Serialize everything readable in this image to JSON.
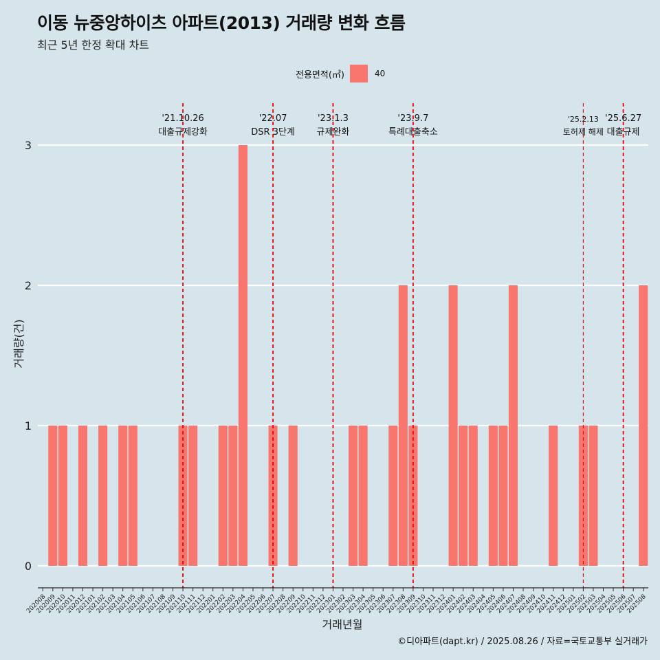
{
  "title": "이동 뉴중앙하이츠 아파트(2013) 거래량 변화 흐름",
  "subtitle": "최근 5년 한정 확대 차트",
  "caption": "©디아파트(dapt.kr) / 2025.08.26 / 자료=국토교통부 실거래가",
  "legend": {
    "title": "전용면적(㎡)",
    "entries": [
      "40"
    ]
  },
  "colors": {
    "background": "#d6e4eb",
    "bar": "#f8766d",
    "vline": "#ee0000",
    "grid": "#ffffff"
  },
  "chart_data": {
    "type": "bar",
    "xlabel": "거래년월",
    "ylabel": "거래량(건)",
    "ylim": [
      0,
      3
    ],
    "yticks": [
      0,
      1,
      2,
      3
    ],
    "grid": true,
    "legend_position": "top",
    "categories": [
      "202008",
      "202009",
      "202010",
      "202011",
      "202012",
      "202101",
      "202102",
      "202103",
      "202104",
      "202105",
      "202106",
      "202107",
      "202108",
      "202109",
      "202110",
      "202111",
      "202112",
      "202201",
      "202202",
      "202203",
      "202204",
      "202205",
      "202206",
      "202207",
      "202208",
      "202209",
      "202210",
      "202211",
      "202212",
      "202301",
      "202302",
      "202303",
      "202304",
      "202305",
      "202306",
      "202307",
      "202308",
      "202309",
      "202310",
      "202311",
      "202312",
      "202401",
      "202402",
      "202403",
      "202404",
      "202405",
      "202406",
      "202407",
      "202408",
      "202409",
      "202410",
      "202411",
      "202412",
      "202501",
      "202502",
      "202503",
      "202504",
      "202505",
      "202506",
      "202507",
      "202508"
    ],
    "series": [
      {
        "name": "40",
        "values": [
          0,
          1,
          1,
          0,
          1,
          0,
          1,
          0,
          1,
          1,
          0,
          0,
          0,
          0,
          1,
          1,
          0,
          0,
          1,
          1,
          3,
          0,
          0,
          1,
          0,
          1,
          0,
          0,
          0,
          0,
          0,
          1,
          1,
          0,
          0,
          1,
          2,
          1,
          0,
          0,
          0,
          2,
          1,
          1,
          0,
          1,
          1,
          2,
          0,
          0,
          0,
          1,
          0,
          0,
          1,
          1,
          0,
          0,
          0,
          0,
          2
        ]
      }
    ],
    "annotations": [
      {
        "date": "'21.10.26",
        "label": "대출규제강화",
        "category": "202110",
        "style": "thick"
      },
      {
        "date": "'22.07",
        "label": "DSR 3단계",
        "category": "202207",
        "style": "thick"
      },
      {
        "date": "'23.1.3",
        "label": "규제완화",
        "category": "202301",
        "style": "thick"
      },
      {
        "date": "'23.9.7",
        "label": "특례대출축소",
        "category": "202309",
        "style": "thick"
      },
      {
        "date": "'25.2.13",
        "label": "토허제 해제",
        "category": "202502",
        "style": "thin"
      },
      {
        "date": "'25.6.27",
        "label": "대출규제",
        "category": "202506",
        "style": "thick"
      }
    ]
  }
}
